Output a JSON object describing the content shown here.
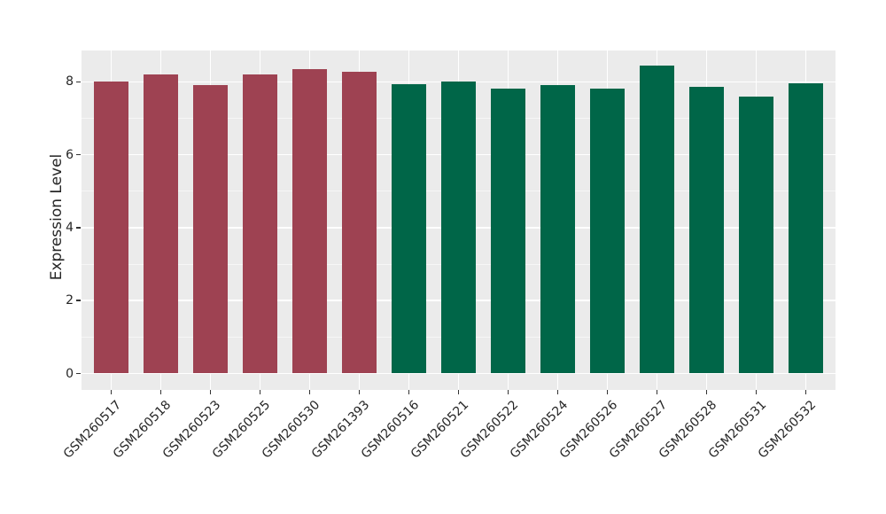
{
  "chart_data": {
    "type": "bar",
    "title": "",
    "xlabel": "",
    "ylabel": "Expression Level",
    "ylim": [
      0,
      8.87
    ],
    "yticks": [
      0,
      2,
      4,
      6,
      8
    ],
    "yticks_minor": [
      1,
      3,
      5,
      7
    ],
    "grid": "white major+minor horizontal gridlines and vertical gridlines at each category, on gray panel",
    "legend_position": "none",
    "categories": [
      "GSM260517",
      "GSM260518",
      "GSM260523",
      "GSM260525",
      "GSM260530",
      "GSM261393",
      "GSM260516",
      "GSM260521",
      "GSM260522",
      "GSM260524",
      "GSM260526",
      "GSM260527",
      "GSM260528",
      "GSM260531",
      "GSM260532"
    ],
    "values": [
      8.0,
      8.2,
      7.92,
      8.2,
      8.36,
      8.28,
      7.95,
      8.02,
      7.82,
      7.92,
      7.82,
      8.45,
      7.87,
      7.6,
      7.97
    ],
    "groups": [
      "A",
      "A",
      "A",
      "A",
      "A",
      "A",
      "B",
      "B",
      "B",
      "B",
      "B",
      "B",
      "B",
      "B",
      "B"
    ],
    "group_colors": {
      "A": "#9E4252",
      "B": "#006648"
    }
  },
  "style": {
    "background": "#FFFFFF",
    "panel_bg": "#EBEBEB",
    "grid_color": "#FFFFFF",
    "tick_mark_color": "#333333",
    "text_color": "#262626"
  }
}
